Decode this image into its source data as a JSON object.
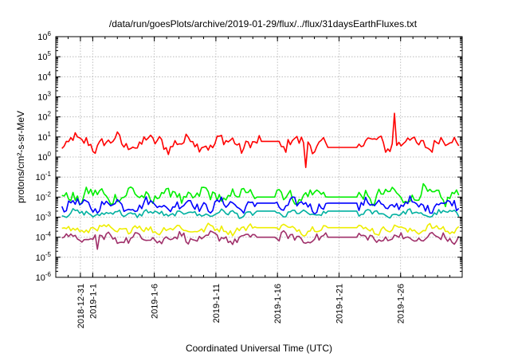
{
  "chart_data": {
    "type": "line",
    "title": "/data/run/goesPlots/archive/2019-01-29/flux/../flux/31daysEarthFluxes.txt",
    "xlabel": "Coordinated Universal Time (UTC)",
    "ylabel": "protons/cm²-s-sr-MeV",
    "ylog": true,
    "ylim": [
      1e-06,
      1000000.0
    ],
    "xlim": [
      "2018-12-29",
      "2019-01-31"
    ],
    "grid": true,
    "x_ticks": [
      "2018-12-31",
      "2019-1-1",
      "2019-1-6",
      "2019-1-11",
      "2019-1-16",
      "2019-1-21",
      "2019-1-26"
    ],
    "y_tick_exponents": [
      -6,
      -5,
      -4,
      -3,
      -2,
      -1,
      0,
      1,
      2,
      3,
      4,
      5,
      6
    ],
    "gap": [
      "2019-01-20",
      "2019-01-22.5"
    ],
    "series": [
      {
        "color": "#ff0000",
        "center": 5,
        "spread_dec": 0.45,
        "spike": {
          "x": "2019-01-25.5",
          "y": 150
        },
        "dip": {
          "x": "2019-01-18.3",
          "y": 0.3
        }
      },
      {
        "color": "#00ee00",
        "center": 0.012,
        "spread_dec": 0.45,
        "gap_value": 0.01
      },
      {
        "color": "#0000ff",
        "center": 0.004,
        "spread_dec": 0.35,
        "gap_value": 0.005
      },
      {
        "color": "#00b0a0",
        "center": 0.0015,
        "spread_dec": 0.2,
        "gap_value": 0.002
      },
      {
        "color": "#eeee00",
        "center": 0.00025,
        "spread_dec": 0.25,
        "gap_value": 0.0003
      },
      {
        "color": "#a0306a",
        "center": 9e-05,
        "spread_dec": 0.3,
        "gap_value": 0.0001,
        "dip": {
          "x": "2019-01-01.3",
          "y": 2.5e-05
        }
      }
    ]
  }
}
